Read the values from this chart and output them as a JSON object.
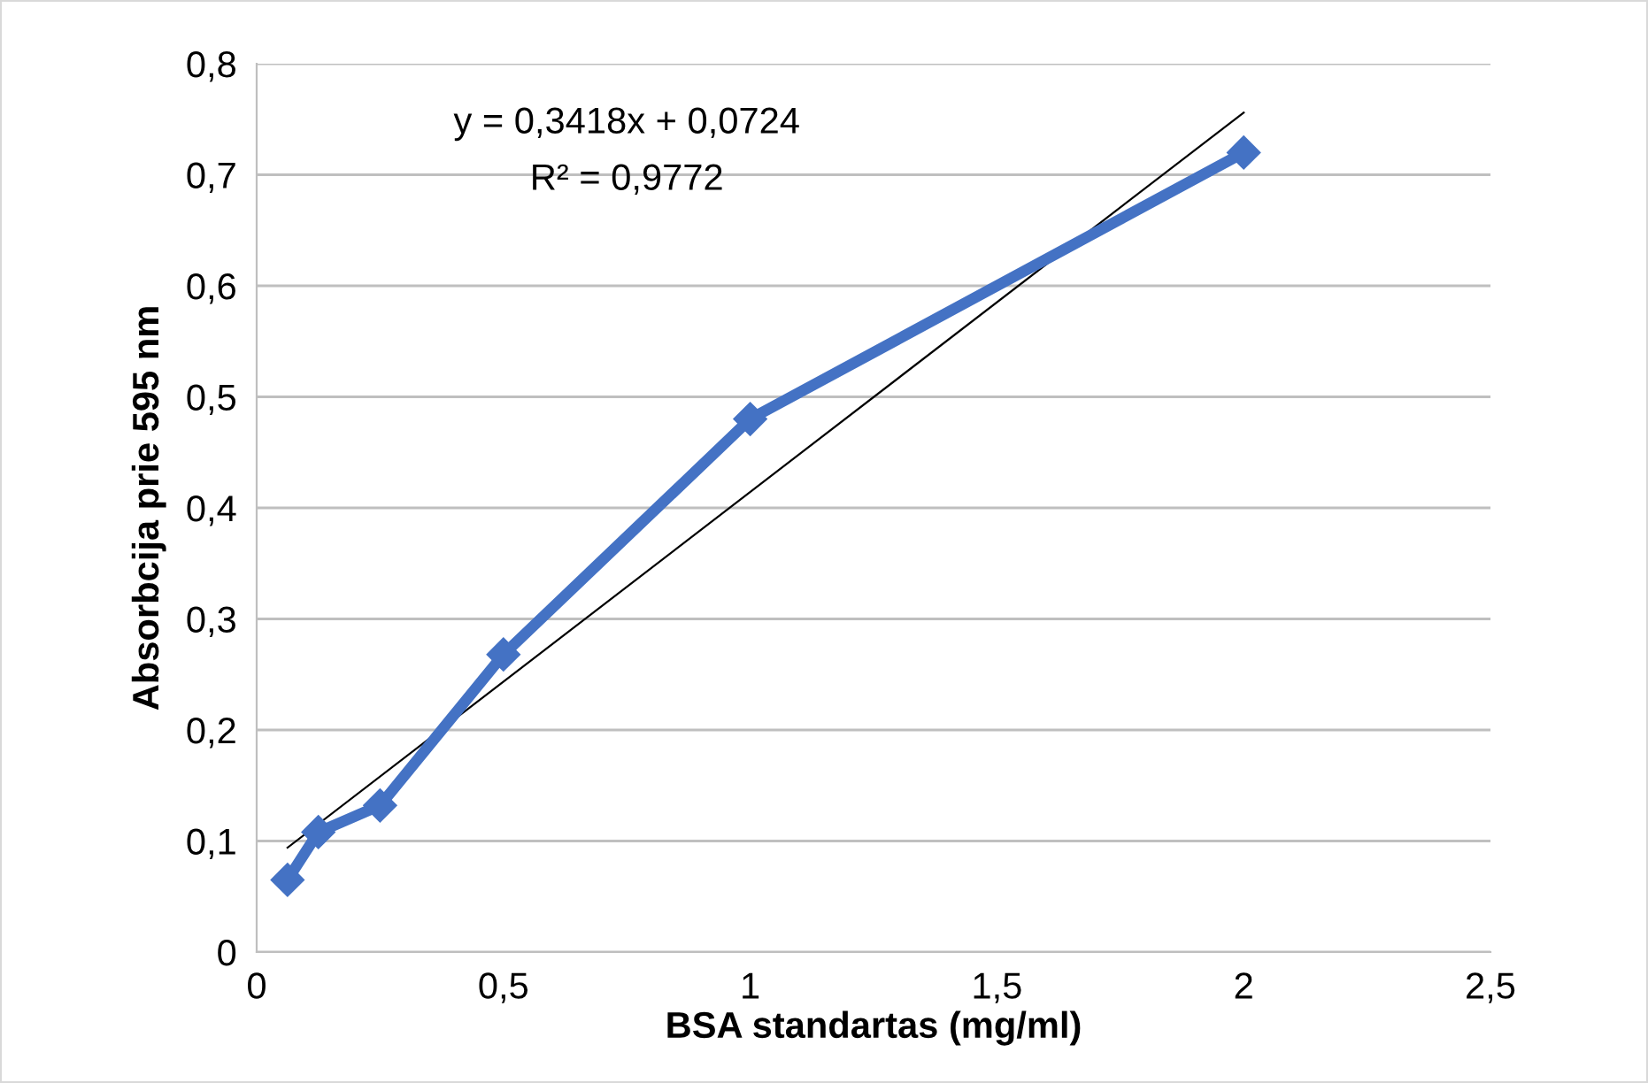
{
  "chart_data": {
    "type": "line",
    "xlabel": "BSA standartas (mg/ml)",
    "ylabel": "Absorbcija prie 595 nm",
    "x": [
      0.0625,
      0.125,
      0.25,
      0.5,
      1,
      2
    ],
    "series": [
      {
        "color": "#4472c4",
        "values": [
          0.065,
          0.108,
          0.132,
          0.268,
          0.48,
          0.72
        ],
        "marker": "diamond"
      },
      {
        "type": "line",
        "color": "#000000",
        "x": [
          0.0625,
          2
        ],
        "values": [
          0.094,
          0.756
        ],
        "marker": "none"
      }
    ],
    "annotations": [
      "y = 0,3418x + 0,0724",
      "R² = 0,9772"
    ],
    "xlim": [
      0,
      2.5
    ],
    "xticks": [
      0,
      {
        "value": 0.5,
        "label": "0,5"
      },
      1,
      {
        "value": 1.5,
        "label": "1,5"
      },
      2,
      {
        "value": 2.5,
        "label": "2,5"
      }
    ],
    "ylim": [
      0,
      0.8
    ],
    "yticks": [
      0,
      {
        "value": 0.1,
        "label": "0,1"
      },
      {
        "value": 0.2,
        "label": "0,2"
      },
      {
        "value": 0.3,
        "label": "0,3"
      },
      {
        "value": 0.4,
        "label": "0,4"
      },
      {
        "value": 0.5,
        "label": "0,5"
      },
      {
        "value": 0.6,
        "label": "0,6"
      },
      {
        "value": 0.7,
        "label": "0,7"
      },
      {
        "value": 0.8,
        "label": "0,8"
      }
    ],
    "grid": "y",
    "legend": false
  }
}
